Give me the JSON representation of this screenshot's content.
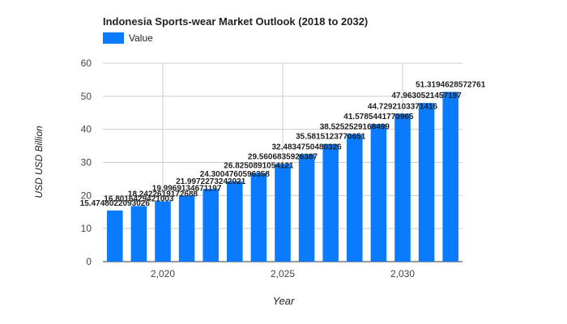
{
  "chart_data": {
    "type": "bar",
    "title": "Indonesia Sports-wear Market Outlook (2018 to 2032)",
    "xlabel": "Year",
    "ylabel": "USD USD Billion",
    "legend": {
      "label": "Value",
      "position": "top-left"
    },
    "grid": true,
    "color": "#0a7bff",
    "ylim": [
      0,
      60
    ],
    "y_ticks": [
      "0",
      "10",
      "20",
      "30",
      "40",
      "50",
      "60"
    ],
    "x_ticks": [
      {
        "value": 2020,
        "label": "2,020"
      },
      {
        "value": 2025,
        "label": "2,025"
      },
      {
        "value": 2030,
        "label": "2,030"
      }
    ],
    "x": [
      2018,
      2019,
      2020,
      2021,
      2022,
      2023,
      2024,
      2025,
      2026,
      2027,
      2028,
      2029,
      2030,
      2031,
      2032
    ],
    "values": [
      15.4748022093026,
      16.8016429421003,
      18.2422619172688,
      19.9969134671197,
      21.9972273242021,
      24.3004760596358,
      26.8250891054121,
      29.5606835926387,
      32.4834750480326,
      35.5815123770651,
      38.5252529168499,
      41.5785441770965,
      44.7292103371416,
      47.9630521457197,
      51.3194628572761
    ],
    "data_labels": [
      "15.4748022093026",
      "16.8016429421003",
      "18.2422619172688",
      "19.9969134671197",
      "21.9972273242021",
      "24.3004760596358",
      "26.8250891054121",
      "29.5606835926387",
      "32.4834750480326",
      "35.5815123770651",
      "38.5252529168499",
      "41.5785441770965",
      "44.7292103371416",
      "47.9630521457197",
      "51.3194628572761"
    ]
  }
}
